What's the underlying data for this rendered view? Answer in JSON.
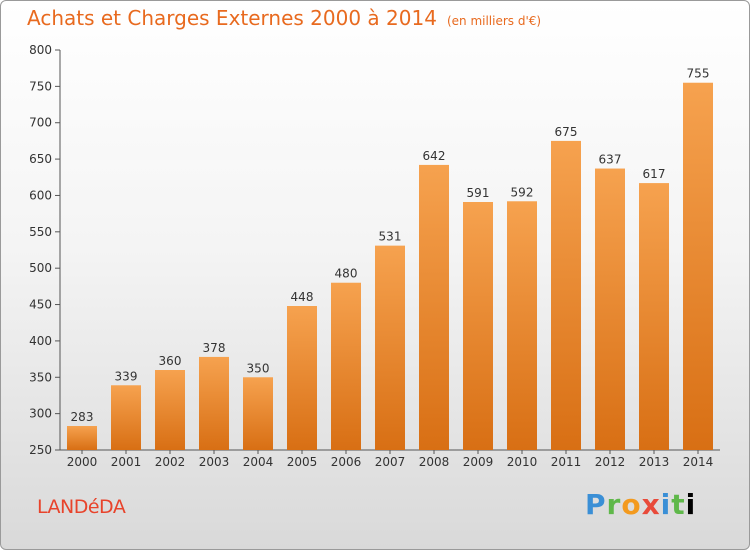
{
  "header": {
    "title": "Achats et Charges Externes 2000 à 2014",
    "subtitle": "(en milliers d'€)"
  },
  "footer": {
    "city": "LANDéDA",
    "logo": [
      "P",
      "r",
      "o",
      "x",
      "i",
      "t",
      "i"
    ]
  },
  "colors": {
    "bar_top": "#f6a24f",
    "bar_bottom": "#d86f14",
    "title": "#e86a1f",
    "city": "#e8432b"
  },
  "chart_data": {
    "type": "bar",
    "title": "Achats et Charges Externes 2000 à 2014",
    "subtitle": "(en milliers d'€)",
    "categories": [
      "2000",
      "2001",
      "2002",
      "2003",
      "2004",
      "2005",
      "2006",
      "2007",
      "2008",
      "2009",
      "2010",
      "2011",
      "2012",
      "2013",
      "2014"
    ],
    "values": [
      283,
      339,
      360,
      378,
      350,
      448,
      480,
      531,
      642,
      591,
      592,
      675,
      637,
      617,
      755
    ],
    "ylim": [
      250,
      800
    ],
    "yticks": [
      250,
      300,
      350,
      400,
      450,
      500,
      550,
      600,
      650,
      700,
      750,
      800
    ],
    "grid": false,
    "legend": "none"
  }
}
